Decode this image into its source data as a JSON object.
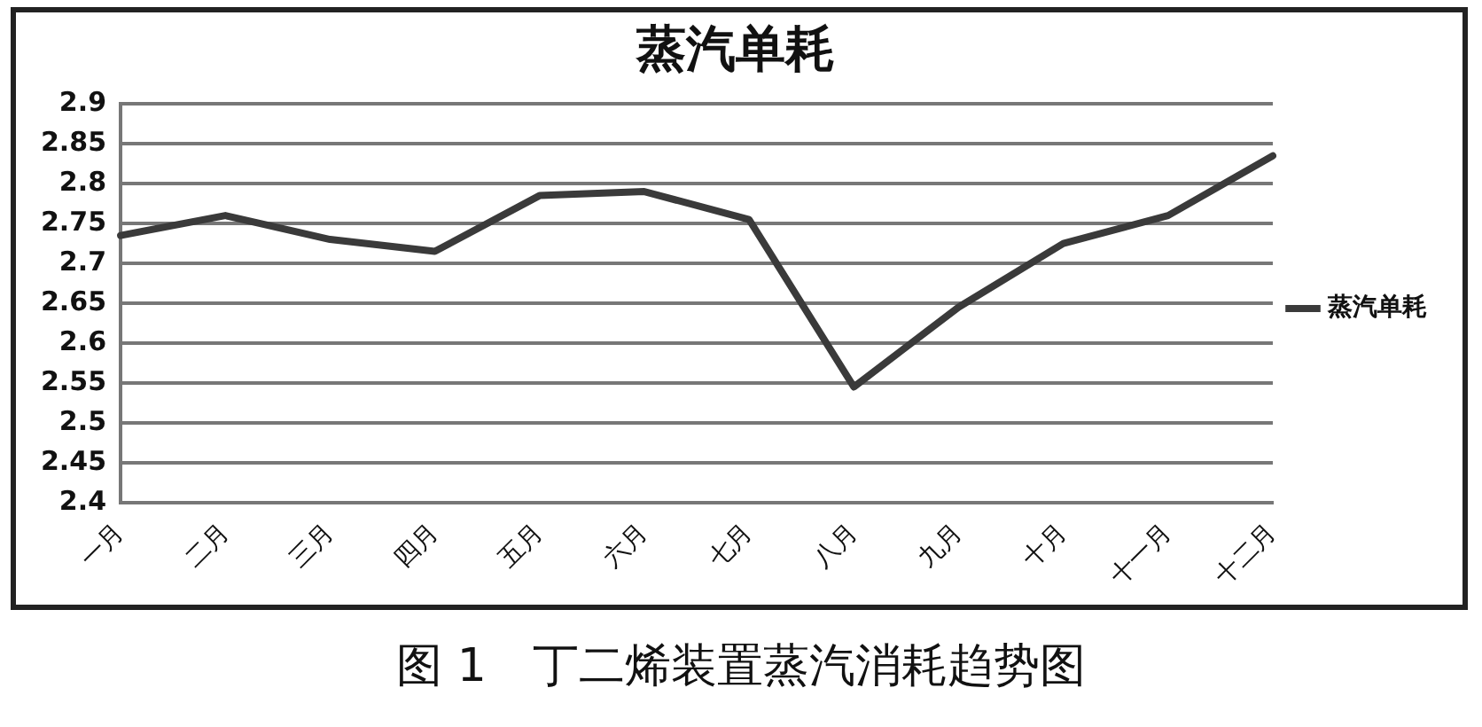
{
  "chart_data": {
    "type": "line",
    "title": "蒸汽单耗",
    "categories": [
      "一月",
      "二月",
      "三月",
      "四月",
      "五月",
      "六月",
      "七月",
      "八月",
      "九月",
      "十月",
      "十一月",
      "十二月"
    ],
    "series": [
      {
        "name": "蒸汽单耗",
        "color": "#3a3a3a",
        "values": [
          2.735,
          2.76,
          2.73,
          2.715,
          2.785,
          2.79,
          2.755,
          2.545,
          2.645,
          2.725,
          2.76,
          2.835
        ]
      }
    ],
    "ylim": [
      2.4,
      2.9
    ],
    "yticks": [
      2.4,
      2.45,
      2.5,
      2.55,
      2.6,
      2.65,
      2.7,
      2.75,
      2.8,
      2.85,
      2.9
    ],
    "grid": "y",
    "legend": "right",
    "marker": "none",
    "annotations": [
      "图 1　丁二烯装置蒸汽消耗趋势图"
    ]
  }
}
